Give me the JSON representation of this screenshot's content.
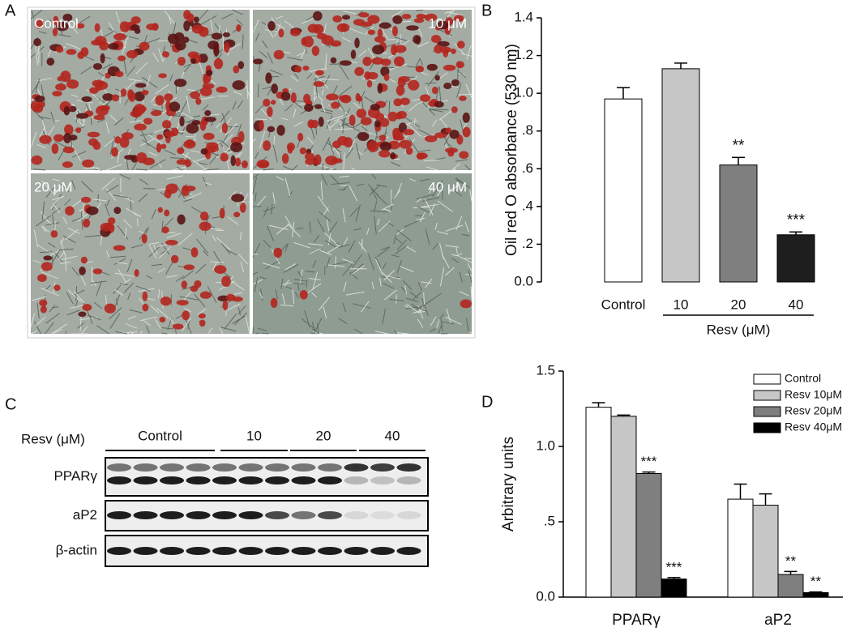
{
  "panel_labels": [
    "A",
    "B",
    "C",
    "D"
  ],
  "micrographs": {
    "labels": [
      "Control",
      "10 μM",
      "20 μM",
      "40 μM"
    ]
  },
  "blot": {
    "treatment_label": "Resv (μM)",
    "groups": [
      "Control",
      "10",
      "20",
      "40"
    ],
    "rows": [
      "PPARγ",
      "aP2",
      "β-actin"
    ]
  },
  "chart_data": [
    {
      "type": "bar",
      "y_label": "Oil red O absorbance (530 nm)",
      "categories": [
        "Control",
        "10",
        "20",
        "40"
      ],
      "x_group_label": "Resv (μM)",
      "values": [
        0.97,
        1.13,
        0.62,
        0.25
      ],
      "errors": [
        0.06,
        0.03,
        0.04,
        0.015
      ],
      "colors": [
        "#ffffff",
        "#c6c6c6",
        "#7f7f7f",
        "#1e1e1e"
      ],
      "significance": [
        null,
        null,
        "**",
        "***"
      ],
      "ylim": [
        0,
        1.4
      ],
      "yticks": [
        {
          "value": 0,
          "label": "0.0"
        },
        {
          "value": 0.2,
          "label": ".2"
        },
        {
          "value": 0.4,
          "label": ".4"
        },
        {
          "value": 0.6,
          "label": ".6"
        },
        {
          "value": 0.8,
          "label": ".8"
        },
        {
          "value": 1,
          "label": "1.0"
        },
        1.2,
        1.4
      ]
    },
    {
      "type": "bar",
      "y_label": "Arbitrary units",
      "categories": [
        "PPARγ",
        "aP2"
      ],
      "legend": "top-right",
      "series": [
        {
          "name": "Control",
          "color": "#ffffff",
          "values": [
            1.26,
            0.65
          ],
          "errors": [
            0.03,
            0.1
          ],
          "significance": [
            null,
            null
          ]
        },
        {
          "name": "Resv 10μM",
          "color": "#c6c6c6",
          "values": [
            1.2,
            0.61
          ],
          "errors": [
            0.008,
            0.075
          ],
          "significance": [
            null,
            null
          ]
        },
        {
          "name": "Resv 20μM",
          "color": "#7f7f7f",
          "values": [
            0.82,
            0.15
          ],
          "errors": [
            0.01,
            0.02
          ],
          "significance": [
            "***",
            "**"
          ]
        },
        {
          "name": "Resv 40μM",
          "color": "#000000",
          "values": [
            0.12,
            0.03
          ],
          "errors": [
            0.01,
            0.004
          ],
          "significance": [
            "***",
            "**"
          ]
        }
      ],
      "ylim": [
        0,
        1.5
      ],
      "yticks": [
        {
          "value": 0,
          "label": "0.0"
        },
        {
          "value": 0.5,
          "label": ".5"
        },
        {
          "value": 1,
          "label": "1.0"
        },
        1.5
      ]
    }
  ]
}
